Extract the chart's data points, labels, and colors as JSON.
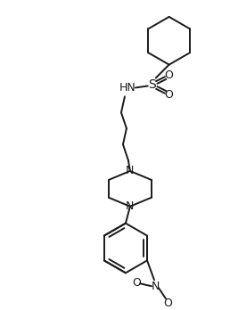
{
  "bg_color": "#ffffff",
  "line_color": "#1a1a1a",
  "line_width": 1.4,
  "figure_size": [
    2.58,
    3.48
  ],
  "dpi": 100,
  "xlim": [
    0,
    258
  ],
  "ylim": [
    0,
    348
  ]
}
